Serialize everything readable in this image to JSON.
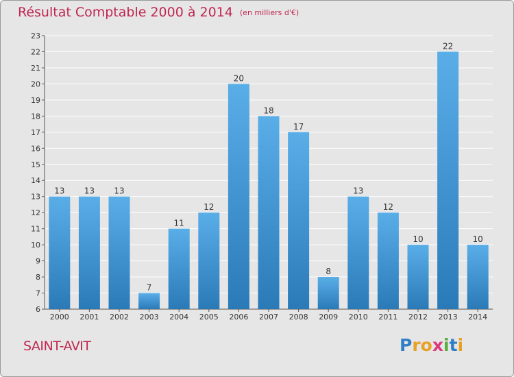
{
  "header": {
    "title": "Résultat Comptable 2000 à 2014",
    "unit": "(en milliers d'€)"
  },
  "commune": "SAINT-AVIT",
  "logo": {
    "text": "Proxiti",
    "letters": [
      {
        "char": "P",
        "color": "#2f7fc8"
      },
      {
        "char": "r",
        "color": "#e8a126"
      },
      {
        "char": "o",
        "color": "#e8a126"
      },
      {
        "char": "x",
        "color": "#d83a7c"
      },
      {
        "char": "i",
        "color": "#57ad3a"
      },
      {
        "char": "t",
        "color": "#2f7fc8"
      },
      {
        "char": "i",
        "color": "#e8a126"
      }
    ]
  },
  "colors": {
    "title": "#c0264f",
    "bar_top": "#5aaee8",
    "bar_bottom": "#2a7ab8",
    "background": "#e6e6e6",
    "grid": "#ffffff"
  },
  "chart_data": {
    "type": "bar",
    "categories": [
      "2000",
      "2001",
      "2002",
      "2003",
      "2004",
      "2005",
      "2006",
      "2007",
      "2008",
      "2009",
      "2010",
      "2011",
      "2012",
      "2013",
      "2014"
    ],
    "values": [
      13,
      13,
      13,
      7,
      11,
      12,
      20,
      18,
      17,
      8,
      13,
      12,
      10,
      22,
      10
    ],
    "ylim": [
      6,
      23
    ],
    "yticks": [
      6,
      7,
      8,
      9,
      10,
      11,
      12,
      13,
      14,
      15,
      16,
      17,
      18,
      19,
      20,
      21,
      22,
      23
    ],
    "grid": true,
    "data_labels": true
  }
}
